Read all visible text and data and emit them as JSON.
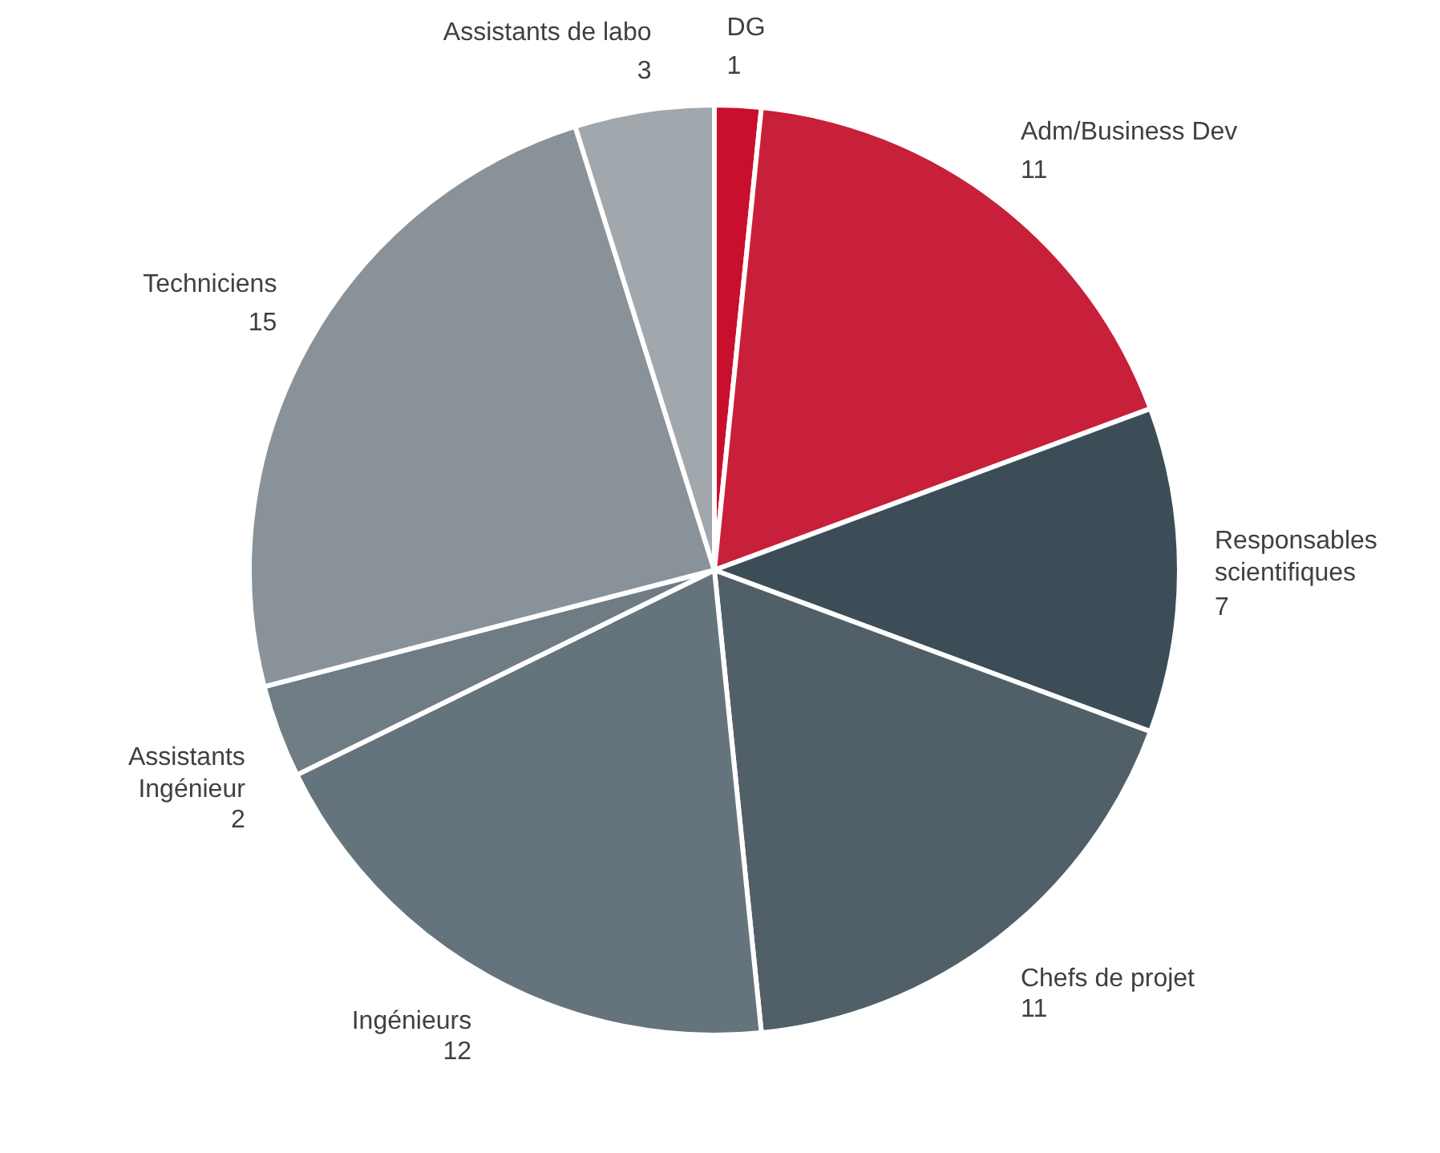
{
  "chart_data": {
    "type": "pie",
    "categories": [
      "DG",
      "Adm/Business Dev",
      "Responsables scientifiques",
      "Chefs de projet",
      "Ingénieurs",
      "Assistants Ingénieur",
      "Techniciens",
      "Assistants de labo"
    ],
    "values": [
      1,
      11,
      7,
      11,
      12,
      2,
      15,
      3
    ],
    "colors": [
      "#c8102e",
      "#c8203a",
      "#3d4d58",
      "#515f69",
      "#65747c",
      "#6f7c84",
      "#8a9299",
      "#a0a7ad"
    ],
    "data_labels": true
  }
}
